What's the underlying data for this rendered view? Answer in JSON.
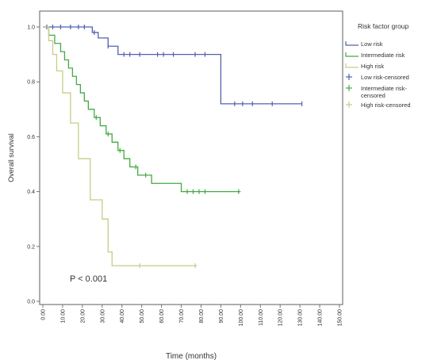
{
  "chart_data": {
    "type": "line",
    "step": true,
    "title": "",
    "xlabel": "Time (months)",
    "ylabel": "Overall survival",
    "xlim": [
      0,
      150
    ],
    "ylim": [
      0,
      1
    ],
    "x_ticks": [
      "0.00",
      "10.00",
      "20.00",
      "30.00",
      "40.00",
      "50.00",
      "60.00",
      "70.00",
      "80.00",
      "90.00",
      "100.00",
      "110.00",
      "120.00",
      "130.00",
      "140.00",
      "150.00"
    ],
    "y_ticks": [
      "0.0",
      "0.2",
      "0.4",
      "0.6",
      "0.8",
      "1.0"
    ],
    "annotation": "P < 0.001",
    "legend": {
      "title": "Risk factor group",
      "position": "right",
      "entries": [
        "Low risk",
        "Intermediate risk",
        "High risk",
        "Low risk-censored",
        "Intermediate risk-censored",
        "High risk-censored"
      ]
    },
    "series": [
      {
        "name": "Low risk",
        "color": "#5060b0",
        "x": [
          0,
          25,
          28,
          33,
          38,
          90,
          131
        ],
        "y": [
          1.0,
          0.98,
          0.96,
          0.93,
          0.9,
          0.72,
          0.72
        ],
        "censored": [
          {
            "x": 2,
            "y": 1.0
          },
          {
            "x": 5,
            "y": 1.0
          },
          {
            "x": 9,
            "y": 1.0
          },
          {
            "x": 14,
            "y": 1.0
          },
          {
            "x": 18,
            "y": 1.0
          },
          {
            "x": 21,
            "y": 1.0
          },
          {
            "x": 26,
            "y": 0.98
          },
          {
            "x": 33,
            "y": 0.93
          },
          {
            "x": 41,
            "y": 0.9
          },
          {
            "x": 44,
            "y": 0.9
          },
          {
            "x": 49,
            "y": 0.9
          },
          {
            "x": 58,
            "y": 0.9
          },
          {
            "x": 61,
            "y": 0.9
          },
          {
            "x": 66,
            "y": 0.9
          },
          {
            "x": 77,
            "y": 0.9
          },
          {
            "x": 82,
            "y": 0.9
          },
          {
            "x": 97,
            "y": 0.72
          },
          {
            "x": 101,
            "y": 0.72
          },
          {
            "x": 106,
            "y": 0.72
          },
          {
            "x": 116,
            "y": 0.72
          },
          {
            "x": 131,
            "y": 0.72
          }
        ]
      },
      {
        "name": "Intermediate risk",
        "color": "#44aa44",
        "x": [
          0,
          3,
          6,
          9,
          11,
          13,
          15,
          17,
          19,
          21,
          23,
          26,
          29,
          32,
          35,
          38,
          41,
          44,
          48,
          55,
          61,
          70,
          100
        ],
        "y": [
          1.0,
          0.97,
          0.94,
          0.91,
          0.88,
          0.85,
          0.82,
          0.79,
          0.76,
          0.73,
          0.7,
          0.67,
          0.64,
          0.61,
          0.58,
          0.55,
          0.52,
          0.49,
          0.46,
          0.43,
          0.43,
          0.4,
          0.4
        ],
        "censored": [
          {
            "x": 27,
            "y": 0.67
          },
          {
            "x": 33,
            "y": 0.61
          },
          {
            "x": 39,
            "y": 0.55
          },
          {
            "x": 47,
            "y": 0.49
          },
          {
            "x": 52,
            "y": 0.46
          },
          {
            "x": 73,
            "y": 0.4
          },
          {
            "x": 76,
            "y": 0.4
          },
          {
            "x": 79,
            "y": 0.4
          },
          {
            "x": 82,
            "y": 0.4
          },
          {
            "x": 99,
            "y": 0.4
          }
        ]
      },
      {
        "name": "High risk",
        "color": "#c8cc88",
        "x": [
          0,
          3,
          5,
          7,
          10,
          14,
          18,
          24,
          30,
          33,
          35,
          78
        ],
        "y": [
          1.0,
          0.95,
          0.9,
          0.84,
          0.76,
          0.65,
          0.52,
          0.37,
          0.3,
          0.18,
          0.13,
          0.13
        ],
        "censored": [
          {
            "x": 49,
            "y": 0.13
          },
          {
            "x": 77,
            "y": 0.13
          }
        ]
      }
    ]
  }
}
